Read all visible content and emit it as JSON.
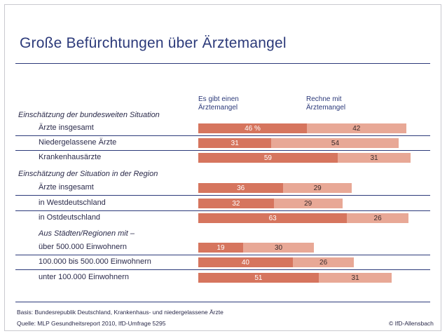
{
  "title": "Große Befürchtungen über Ärztemangel",
  "column_heads": [
    "Es gibt einen\nÄrztemangel",
    "Rechne mit\nÄrztemangel"
  ],
  "chart_data": {
    "type": "bar",
    "stacked": true,
    "orientation": "horizontal",
    "value_suffix_first": " %",
    "series": [
      {
        "name": "Es gibt einen Ärztemangel",
        "color": "#d6755e"
      },
      {
        "name": "Rechne mit Ärztemangel",
        "color": "#e8a896"
      }
    ],
    "groups": [
      {
        "title": "Einschätzung der bundesweiten Situation",
        "rows": [
          {
            "label": "Ärzte insgesamt",
            "values": [
              46,
              42
            ],
            "first_label": "46 %"
          },
          {
            "label": "Niedergelassene Ärzte",
            "values": [
              31,
              54
            ]
          },
          {
            "label": "Krankenhausärzte",
            "values": [
              59,
              31
            ]
          }
        ]
      },
      {
        "title": "Einschätzung der Situation in der Region",
        "rows": [
          {
            "label": "Ärzte insgesamt",
            "values": [
              36,
              29
            ]
          },
          {
            "label": "in Westdeutschland",
            "values": [
              32,
              29
            ]
          },
          {
            "label": "in Ostdeutschland",
            "values": [
              63,
              26
            ]
          }
        ]
      },
      {
        "title": "Aus Städten/Regionen mit –",
        "rows": [
          {
            "label": "über 500.000 Einwohnern",
            "values": [
              19,
              30
            ]
          },
          {
            "label": "100.000 bis 500.000 Einwohnern",
            "values": [
              40,
              26
            ]
          },
          {
            "label": "unter 100.000 Einwohnern",
            "values": [
              51,
              31
            ]
          }
        ]
      }
    ],
    "xlim": [
      0,
      100
    ]
  },
  "footer": {
    "basis": "Basis: Bundesrepublik Deutschland, Krankenhaus- und niedergelassene Ärzte",
    "source": "Quelle: MLP Gesundheitsreport 2010, IfD-Umfrage 5295",
    "copyright": "© IfD-Allensbach"
  }
}
